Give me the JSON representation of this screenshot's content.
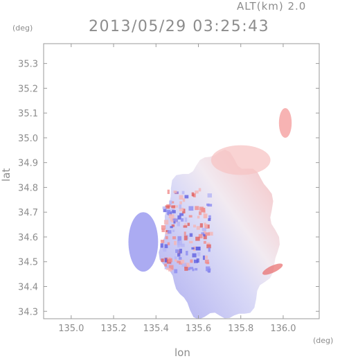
{
  "header": {
    "altitude_label": "ALT(km) 2.0",
    "timestamp": "2013/05/29 03:25:43"
  },
  "axes": {
    "x_unit": "(deg)",
    "y_unit": "(deg)",
    "xlabel": "lon",
    "ylabel": "lat"
  },
  "chart_data": {
    "type": "heatmap",
    "title": "2013/05/29 03:25:43",
    "subtitle": "ALT(km) 2.0",
    "xlabel": "lon",
    "ylabel": "lat",
    "xlim": [
      134.87,
      136.17
    ],
    "ylim": [
      34.27,
      35.38
    ],
    "x_ticks": [
      135.0,
      135.2,
      135.4,
      135.6,
      135.8,
      136.0
    ],
    "x_tick_labels": [
      "135.0",
      "135.2",
      "135.4",
      "135.6",
      "135.8",
      "136.0"
    ],
    "y_ticks": [
      34.3,
      34.4,
      34.5,
      34.6,
      34.7,
      34.8,
      34.9,
      35.0,
      35.1,
      35.2,
      35.3
    ],
    "y_tick_labels": [
      "34.3",
      "34.4",
      "34.5",
      "34.6",
      "34.7",
      "34.8",
      "34.9",
      "35.0",
      "35.1",
      "35.2",
      "35.3"
    ],
    "colors": {
      "negative": "#9c9cf0",
      "positive": "#f5a0a0",
      "strong_positive": "#e86a6a",
      "frame": "#9a9a9a"
    },
    "features": [
      {
        "name": "main-echo",
        "lon": 135.7,
        "lat": 34.6,
        "rx": 0.27,
        "ry": 0.33
      },
      {
        "name": "western-cell",
        "lon": 135.34,
        "lat": 34.58,
        "rx": 0.07,
        "ry": 0.12
      },
      {
        "name": "north-east-cell",
        "lon": 136.01,
        "lat": 35.06,
        "rx": 0.03,
        "ry": 0.06
      },
      {
        "name": "northern-band",
        "lon": 135.8,
        "lat": 34.91,
        "rx": 0.14,
        "ry": 0.06
      }
    ]
  }
}
